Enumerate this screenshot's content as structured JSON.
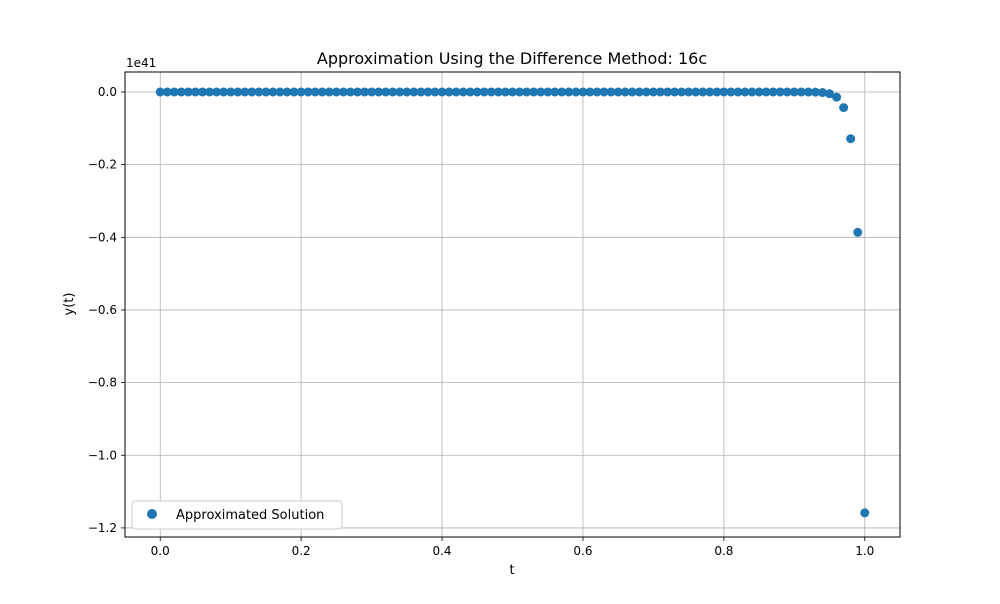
{
  "chart_data": {
    "type": "scatter",
    "title": "Approximation Using the Difference Method: 16c",
    "xlabel": "t",
    "ylabel": "y(t)",
    "y_offset_label": "1e41",
    "xlim": [
      -0.05,
      1.05
    ],
    "ylim": [
      -1.225,
      0.055
    ],
    "xticks": [
      0.0,
      0.2,
      0.4,
      0.6,
      0.8,
      1.0
    ],
    "xtick_labels": [
      "0.0",
      "0.2",
      "0.4",
      "0.6",
      "0.8",
      "1.0"
    ],
    "yticks": [
      0.0,
      -0.2,
      -0.4,
      -0.6,
      -0.8,
      -1.0,
      -1.2
    ],
    "ytick_labels": [
      "0.0",
      "−0.2",
      "−0.4",
      "−0.6",
      "−0.8",
      "−1.0",
      "−1.2"
    ],
    "grid": true,
    "legend_position": "lower-left",
    "series": [
      {
        "name": "Approximated Solution",
        "color": "#1f77b4",
        "x": [
          0.0,
          0.01,
          0.02,
          0.03,
          0.04,
          0.05,
          0.06,
          0.07,
          0.08,
          0.09,
          0.1,
          0.11,
          0.12,
          0.13,
          0.14,
          0.15,
          0.16,
          0.17,
          0.18,
          0.19,
          0.2,
          0.21,
          0.22,
          0.23,
          0.24,
          0.25,
          0.26,
          0.27,
          0.28,
          0.29,
          0.3,
          0.31,
          0.32,
          0.33,
          0.34,
          0.35,
          0.36,
          0.37,
          0.38,
          0.39,
          0.4,
          0.41,
          0.42,
          0.43,
          0.44,
          0.45,
          0.46,
          0.47,
          0.48,
          0.49,
          0.5,
          0.51,
          0.52,
          0.53,
          0.54,
          0.55,
          0.56,
          0.57,
          0.58,
          0.59,
          0.6,
          0.61,
          0.62,
          0.63,
          0.64,
          0.65,
          0.66,
          0.67,
          0.68,
          0.69,
          0.7,
          0.71,
          0.72,
          0.73,
          0.74,
          0.75,
          0.76,
          0.77,
          0.78,
          0.79,
          0.8,
          0.81,
          0.82,
          0.83,
          0.84,
          0.85,
          0.86,
          0.87,
          0.88,
          0.89,
          0.9,
          0.91,
          0.92,
          0.93,
          0.94,
          0.95,
          0.96,
          0.97,
          0.98,
          0.99,
          1.0
        ],
        "y": [
          0,
          0,
          0,
          0,
          0,
          0,
          0,
          0,
          0,
          0,
          0,
          0,
          0,
          0,
          0,
          0,
          0,
          0,
          0,
          0,
          0,
          0,
          0,
          0,
          0,
          0,
          0,
          0,
          0,
          0,
          0,
          0,
          0,
          0,
          0,
          0,
          0,
          0,
          0,
          0,
          0,
          0,
          0,
          0,
          0,
          0,
          0,
          0,
          0,
          0,
          0,
          0,
          0,
          0,
          0,
          0,
          0,
          0,
          0,
          0,
          0,
          0,
          0,
          0,
          0,
          0,
          0,
          0,
          0,
          0,
          0,
          0,
          0,
          0,
          0,
          0,
          0,
          0,
          0,
          0,
          0,
          0,
          0,
          0,
          0,
          0,
          0,
          0,
          0,
          0,
          0,
          0,
          -0.0001,
          -0.0005,
          -0.0016,
          -0.0048,
          -0.0143,
          -0.0429,
          -0.1287,
          -0.3862,
          -1.1586
        ]
      }
    ]
  }
}
